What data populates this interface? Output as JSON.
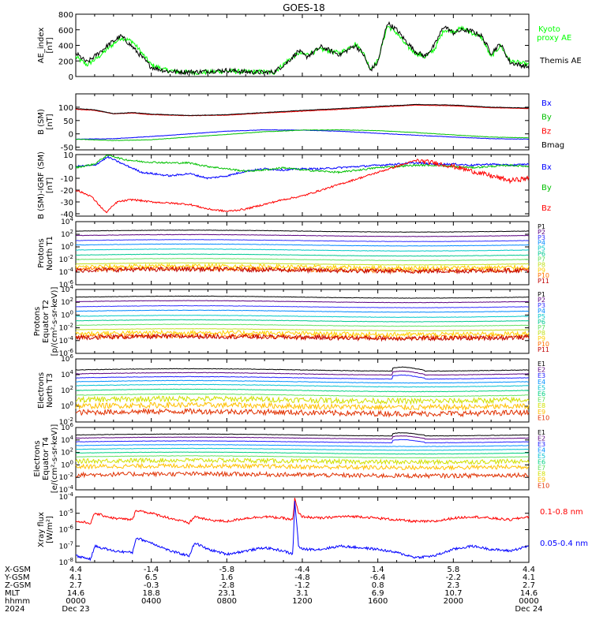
{
  "title": "GOES-18",
  "colors": {
    "green": "#00ff00",
    "blue": "#0000ff",
    "red": "#ff0000",
    "black": "#000000",
    "brown": "#b20000",
    "proton_palette": [
      "#000000",
      "#5a0080",
      "#3030ff",
      "#0088ff",
      "#00c8c8",
      "#00c890",
      "#60e060",
      "#c0e020",
      "#ffd000",
      "#ff7000",
      "#c00000"
    ],
    "electron_palette": [
      "#000000",
      "#5a0080",
      "#2020ff",
      "#0090ff",
      "#00c0d0",
      "#00d080",
      "#60e060",
      "#d0e000",
      "#ffc000",
      "#e03000"
    ]
  },
  "chart_data": [
    {
      "type": "line",
      "ylabel": "AE_index\n[nT]",
      "ylim": [
        0,
        800
      ],
      "yticks": [
        "800",
        "600",
        "400",
        "200",
        "0"
      ],
      "legend": [
        {
          "text": "Kyoto",
          "color": "#00ff00"
        },
        {
          "text": "proxy AE",
          "color": "#00ff00"
        },
        {
          "text": "Themis AE",
          "color": "#000000"
        }
      ],
      "series": [
        {
          "name": "Kyoto proxy AE",
          "color": "#00ff00",
          "x": [
            0,
            0.6,
            1.2,
            1.8,
            2.4,
            3,
            4,
            4.8,
            5.5,
            6.5,
            8,
            9,
            10,
            10.5,
            11.2,
            11.8,
            12.2,
            13,
            14,
            14.8,
            15.2,
            15.6,
            16,
            16.5,
            17,
            17.5,
            18,
            18.5,
            19,
            19.5,
            20,
            20.5,
            21,
            21.5,
            22,
            22.5,
            23,
            24
          ],
          "y": [
            250,
            150,
            250,
            380,
            500,
            450,
            150,
            80,
            60,
            50,
            70,
            60,
            60,
            50,
            200,
            300,
            280,
            350,
            300,
            420,
            320,
            100,
            200,
            650,
            560,
            400,
            300,
            250,
            350,
            600,
            580,
            620,
            560,
            500,
            250,
            400,
            200,
            150
          ]
        },
        {
          "name": "Themis AE",
          "color": "#000000",
          "x": [
            0,
            0.6,
            1.2,
            1.8,
            2.4,
            3,
            4,
            4.8,
            5.5,
            6.5,
            8,
            9,
            10,
            10.5,
            11.2,
            11.8,
            12.2,
            13,
            14,
            14.8,
            15.2,
            15.6,
            16,
            16.5,
            17,
            17.5,
            18,
            18.5,
            19,
            19.5,
            20,
            20.5,
            21,
            21.5,
            22,
            22.5,
            23,
            24
          ],
          "y": [
            300,
            180,
            300,
            420,
            520,
            380,
            120,
            70,
            60,
            60,
            80,
            60,
            50,
            60,
            180,
            330,
            250,
            380,
            280,
            400,
            300,
            80,
            180,
            690,
            600,
            450,
            320,
            260,
            400,
            650,
            560,
            600,
            580,
            520,
            300,
            420,
            180,
            120
          ]
        }
      ]
    },
    {
      "type": "line",
      "ylabel": "B (SM)\n[nT]",
      "ylim": [
        -60,
        150
      ],
      "yticks": [
        "100",
        "50",
        "0",
        "-50"
      ],
      "legend": [
        {
          "text": "Bx",
          "color": "#0000ff"
        },
        {
          "text": "By",
          "color": "#00c000"
        },
        {
          "text": "Bz",
          "color": "#ff0000"
        },
        {
          "text": "Bmag",
          "color": "#000000"
        }
      ],
      "series": [
        {
          "name": "Bx",
          "color": "#0000ff",
          "x": [
            0,
            2,
            4,
            6,
            8,
            10,
            12,
            14,
            16,
            18,
            20,
            22,
            24
          ],
          "y": [
            -20,
            -18,
            -10,
            0,
            10,
            15,
            14,
            10,
            2,
            -5,
            -12,
            -18,
            -20
          ]
        },
        {
          "name": "By",
          "color": "#00c000",
          "x": [
            0,
            2,
            4,
            6,
            8,
            10,
            12,
            14,
            16,
            18,
            20,
            22,
            24
          ],
          "y": [
            -20,
            -25,
            -22,
            -12,
            -2,
            8,
            14,
            15,
            12,
            5,
            -4,
            -12,
            -15
          ]
        },
        {
          "name": "Bz",
          "color": "#ff0000",
          "x": [
            0,
            1,
            2,
            3,
            4,
            6,
            8,
            10,
            12,
            14,
            16,
            18,
            20,
            22,
            24
          ],
          "y": [
            92,
            88,
            75,
            78,
            72,
            68,
            70,
            78,
            85,
            92,
            100,
            108,
            105,
            98,
            95
          ]
        },
        {
          "name": "Bmag",
          "color": "#000000",
          "x": [
            0,
            1,
            2,
            3,
            4,
            6,
            8,
            10,
            12,
            14,
            16,
            18,
            20,
            22,
            24
          ],
          "y": [
            95,
            90,
            76,
            80,
            74,
            69,
            72,
            80,
            88,
            95,
            103,
            110,
            108,
            100,
            97
          ]
        }
      ]
    },
    {
      "type": "line",
      "ylabel": "B (SM)-IGRF (SM)\n[nT]",
      "ylim": [
        -42,
        10
      ],
      "yticks": [
        "10",
        "0",
        "-10",
        "-20",
        "-30",
        "-40"
      ],
      "legend": [
        {
          "text": "Bx",
          "color": "#0000ff"
        },
        {
          "text": "By",
          "color": "#00c000"
        },
        {
          "text": "Bz",
          "color": "#ff0000"
        }
      ],
      "series": [
        {
          "name": "Bx",
          "color": "#0000ff",
          "x": [
            0,
            1,
            1.7,
            2.5,
            3.5,
            5,
            6,
            7,
            8,
            9,
            10,
            11,
            12,
            13,
            14,
            15,
            16,
            17,
            18,
            19,
            20,
            21,
            22,
            23,
            24
          ],
          "y": [
            0,
            1,
            8,
            2,
            -5,
            -8,
            -6,
            -10,
            -8,
            -4,
            -2,
            -3,
            -2,
            -2,
            -1,
            0,
            1,
            2,
            3,
            2,
            2,
            1,
            2,
            1,
            2
          ]
        },
        {
          "name": "By",
          "color": "#00c000",
          "x": [
            0,
            1,
            1.7,
            2.5,
            3.5,
            5,
            6,
            7,
            8,
            9,
            10,
            11,
            12,
            13,
            14,
            15,
            16,
            17,
            18,
            19,
            20,
            21,
            22,
            23,
            24
          ],
          "y": [
            -1,
            2,
            10,
            6,
            4,
            3,
            3,
            0,
            -2,
            -4,
            -3,
            -1,
            -3,
            -4,
            -5,
            -3,
            -1,
            0,
            1,
            1,
            0,
            -1,
            0,
            1,
            0
          ]
        },
        {
          "name": "Bz",
          "color": "#ff0000",
          "x": [
            0,
            0.8,
            1.6,
            2.2,
            3,
            4,
            5,
            6,
            7,
            8,
            9,
            10,
            11,
            12,
            13,
            14,
            15,
            16,
            17,
            18,
            19,
            20,
            21,
            22,
            23,
            24
          ],
          "y": [
            -20,
            -25,
            -39,
            -30,
            -28,
            -30,
            -31,
            -32,
            -36,
            -38,
            -36,
            -32,
            -28,
            -25,
            -20,
            -15,
            -10,
            -5,
            0,
            5,
            3,
            0,
            -4,
            -8,
            -12,
            -10
          ]
        }
      ]
    },
    {
      "type": "line",
      "ylabel": "Protons\nNorth T1",
      "yscale": "log",
      "ylim_exp": [
        -6,
        4
      ],
      "yticks": [
        "10^4",
        "10^2",
        "10^0",
        "10^-2",
        "10^-4",
        "10^-6"
      ],
      "channels": [
        "P1",
        "P2",
        "P3",
        "P4",
        "P5",
        "P6",
        "P7",
        "P8",
        "P9",
        "P10",
        "P11"
      ],
      "levels_exp": [
        2.5,
        1.8,
        1.0,
        0.3,
        -0.5,
        -1.3,
        -2.0,
        -2.7,
        -3.2,
        -3.6,
        -3.7
      ]
    },
    {
      "type": "line",
      "ylabel": "Protons\nEquator T2\n[p/(cm²-s-sr-keV)]",
      "yscale": "log",
      "ylim_exp": [
        -6,
        4
      ],
      "yticks": [
        "10^4",
        "10^2",
        "10^0",
        "10^-2",
        "10^-4",
        "10^-6"
      ],
      "channels": [
        "P1",
        "P2",
        "P3",
        "P4",
        "P5",
        "P6",
        "P7",
        "P8",
        "P9",
        "P10",
        "P11"
      ],
      "levels_exp": [
        2.8,
        2.1,
        1.3,
        0.6,
        -0.2,
        -0.9,
        -1.6,
        -2.3,
        -2.9,
        -3.4,
        -3.5
      ]
    },
    {
      "type": "line",
      "ylabel": "Electrons\nNorth T3",
      "yscale": "log",
      "ylim_exp": [
        -2,
        6
      ],
      "yticks": [
        "10^6",
        "10^4",
        "10^2",
        "10^0",
        "10^-2"
      ],
      "channels": [
        "E1",
        "E2",
        "E3",
        "E4",
        "E5",
        "E6",
        "E7",
        "E8",
        "E9",
        "E10"
      ],
      "levels_exp": [
        4.6,
        4.1,
        3.6,
        3.1,
        2.6,
        2.0,
        1.4,
        0.8,
        0.0,
        -0.8
      ]
    },
    {
      "type": "line",
      "ylabel": "Electrons\nEquator T4\n[e/(cm²-s-sr-keV)]",
      "yscale": "log",
      "ylim_exp": [
        -4,
        6
      ],
      "yticks": [
        "10^6",
        "10^4",
        "10^2",
        "10^0",
        "10^-2",
        "10^-4"
      ],
      "channels": [
        "E1",
        "E2",
        "E3",
        "E4",
        "E5",
        "E6",
        "E7",
        "E8",
        "E9",
        "E10"
      ],
      "levels_exp": [
        4.8,
        4.3,
        3.7,
        3.1,
        2.5,
        1.9,
        1.3,
        0.6,
        -0.3,
        -1.6
      ]
    },
    {
      "type": "line",
      "ylabel": "Xray flux\n[W/m²]",
      "yscale": "log",
      "ylim_exp": [
        -8,
        -4
      ],
      "yticks": [
        "10^-4",
        "10^-5",
        "10^-6",
        "10^-7",
        "10^-8"
      ],
      "legend": [
        {
          "text": "0.1-0.8 nm",
          "color": "#ff0000"
        },
        {
          "text": "0.05-0.4 nm",
          "color": "#0000ff"
        }
      ],
      "series": [
        {
          "name": "0.1-0.8 nm",
          "color": "#ff0000",
          "x": [
            0,
            0.8,
            1,
            2,
            3,
            3.2,
            4,
            5,
            6,
            6.3,
            7,
            8,
            9,
            10,
            11,
            11.5,
            11.6,
            11.8,
            12,
            13,
            14,
            15,
            16,
            17,
            18,
            19,
            20,
            21,
            22,
            23,
            24
          ],
          "y_exp": [
            -5.5,
            -5.6,
            -5.0,
            -5.3,
            -5.4,
            -4.8,
            -5.0,
            -5.3,
            -5.6,
            -5.2,
            -5.4,
            -5.5,
            -5.3,
            -5.2,
            -5.3,
            -5.4,
            -4.1,
            -5.0,
            -5.2,
            -5.3,
            -5.2,
            -5.2,
            -5.3,
            -5.4,
            -5.5,
            -5.5,
            -5.3,
            -5.2,
            -5.3,
            -5.4,
            -5.2
          ]
        },
        {
          "name": "0.05-0.4 nm",
          "color": "#0000ff",
          "x": [
            0,
            0.8,
            1,
            2,
            3,
            3.2,
            4,
            5,
            6,
            6.3,
            7,
            8,
            9,
            10,
            11,
            11.5,
            11.6,
            11.8,
            12,
            13,
            14,
            15,
            16,
            17,
            18,
            19,
            20,
            21,
            22,
            23,
            24
          ],
          "y_exp": [
            -7.6,
            -7.8,
            -7.0,
            -7.3,
            -7.4,
            -6.5,
            -6.8,
            -7.3,
            -7.6,
            -6.8,
            -7.2,
            -7.5,
            -7.3,
            -7.1,
            -7.3,
            -7.5,
            -4.2,
            -7.0,
            -7.2,
            -7.2,
            -7.0,
            -7.1,
            -7.2,
            -7.4,
            -7.7,
            -7.6,
            -7.2,
            -7.0,
            -7.2,
            -7.3,
            -7.0
          ]
        }
      ]
    }
  ],
  "ephemeris": {
    "row_labels": [
      "X-GSM",
      "Y-GSM",
      "Z-GSM",
      "MLT",
      "hhmm",
      "2024"
    ],
    "columns": [
      [
        "4.4",
        "4.1",
        "2.7",
        "14.6",
        "0000",
        "Dec 23"
      ],
      [
        "-1.4",
        "6.5",
        "-0.3",
        "18.8",
        "0400",
        ""
      ],
      [
        "-5.8",
        "1.6",
        "-2.8",
        "23.1",
        "0800",
        ""
      ],
      [
        "-4.4",
        "-4.8",
        "-1.2",
        "3.1",
        "1200",
        ""
      ],
      [
        "1.4",
        "-6.4",
        "0.8",
        "6.9",
        "1600",
        ""
      ],
      [
        "5.8",
        "-2.2",
        "2.3",
        "10.7",
        "2000",
        ""
      ],
      [
        "4.4",
        "4.1",
        "2.7",
        "14.6",
        "0000",
        "Dec 24"
      ]
    ]
  }
}
